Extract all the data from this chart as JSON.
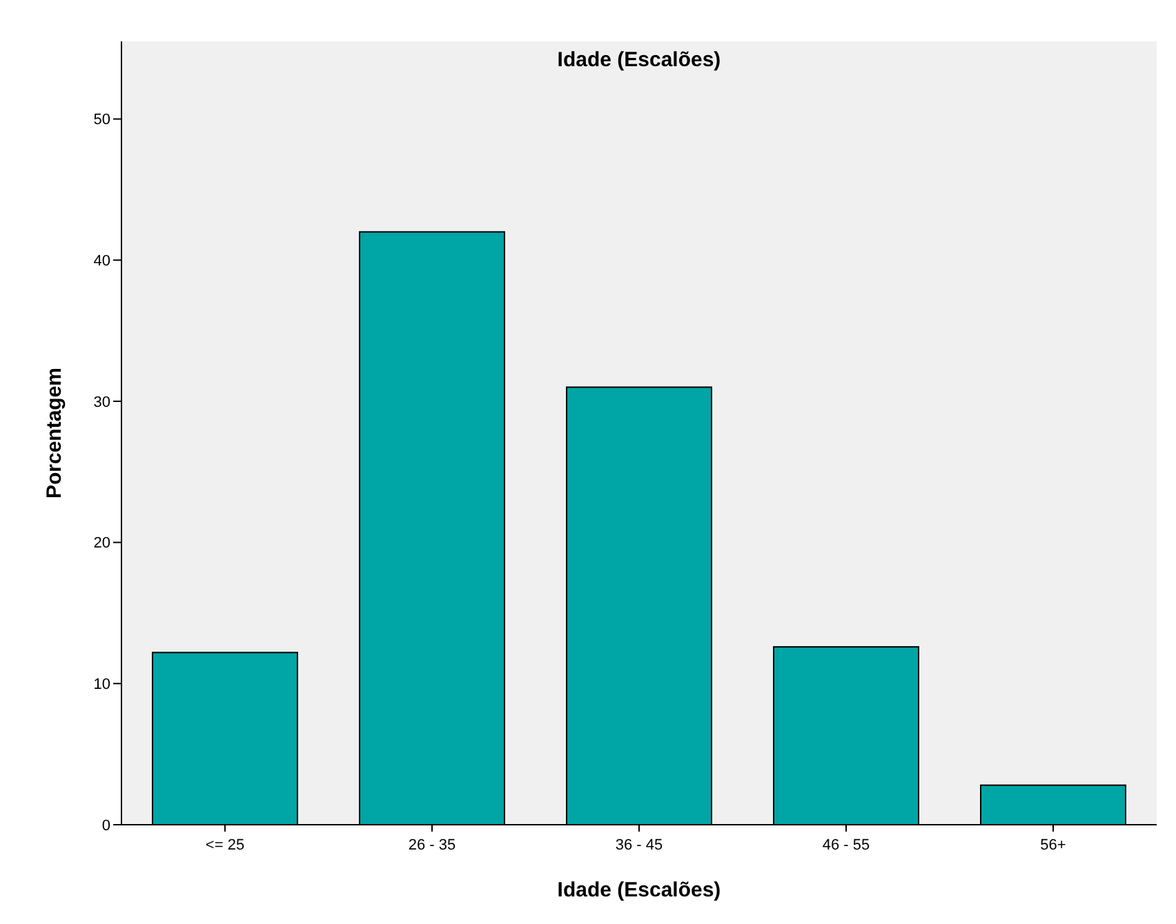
{
  "chart_data": {
    "type": "bar",
    "title": "Idade (Escalões)",
    "xlabel": "Idade (Escalões)",
    "ylabel": "Porcentagem",
    "categories": [
      "<= 25",
      "26 - 35",
      "36 - 45",
      "46 - 55",
      "56+"
    ],
    "values": [
      12.2,
      42.0,
      31.0,
      12.6,
      2.8
    ],
    "color": "#00a5a5",
    "ylim": [
      0,
      55.5
    ],
    "yticks": [
      0,
      10,
      20,
      30,
      40,
      50
    ],
    "grid": false
  }
}
